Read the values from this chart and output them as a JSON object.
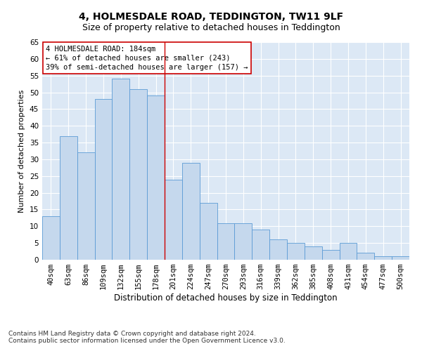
{
  "title": "4, HOLMESDALE ROAD, TEDDINGTON, TW11 9LF",
  "subtitle": "Size of property relative to detached houses in Teddington",
  "xlabel": "Distribution of detached houses by size in Teddington",
  "ylabel": "Number of detached properties",
  "categories": [
    "40sqm",
    "63sqm",
    "86sqm",
    "109sqm",
    "132sqm",
    "155sqm",
    "178sqm",
    "201sqm",
    "224sqm",
    "247sqm",
    "270sqm",
    "293sqm",
    "316sqm",
    "339sqm",
    "362sqm",
    "385sqm",
    "408sqm",
    "431sqm",
    "454sqm",
    "477sqm",
    "500sqm"
  ],
  "values": [
    13,
    37,
    32,
    48,
    54,
    51,
    49,
    24,
    29,
    17,
    11,
    11,
    9,
    6,
    5,
    4,
    3,
    5,
    2,
    1,
    1
  ],
  "bar_color": "#c5d8ed",
  "bar_edge_color": "#5b9bd5",
  "vline_color": "#cc0000",
  "annotation_text": "4 HOLMESDALE ROAD: 184sqm\n← 61% of detached houses are smaller (243)\n39% of semi-detached houses are larger (157) →",
  "annotation_box_color": "#ffffff",
  "annotation_box_edge_color": "#cc0000",
  "ylim": [
    0,
    65
  ],
  "yticks": [
    0,
    5,
    10,
    15,
    20,
    25,
    30,
    35,
    40,
    45,
    50,
    55,
    60,
    65
  ],
  "background_color": "#dce8f5",
  "footer_line1": "Contains HM Land Registry data © Crown copyright and database right 2024.",
  "footer_line2": "Contains public sector information licensed under the Open Government Licence v3.0.",
  "title_fontsize": 10,
  "subtitle_fontsize": 9,
  "xlabel_fontsize": 8.5,
  "ylabel_fontsize": 8,
  "tick_fontsize": 7.5,
  "annotation_fontsize": 7.5,
  "footer_fontsize": 6.5
}
